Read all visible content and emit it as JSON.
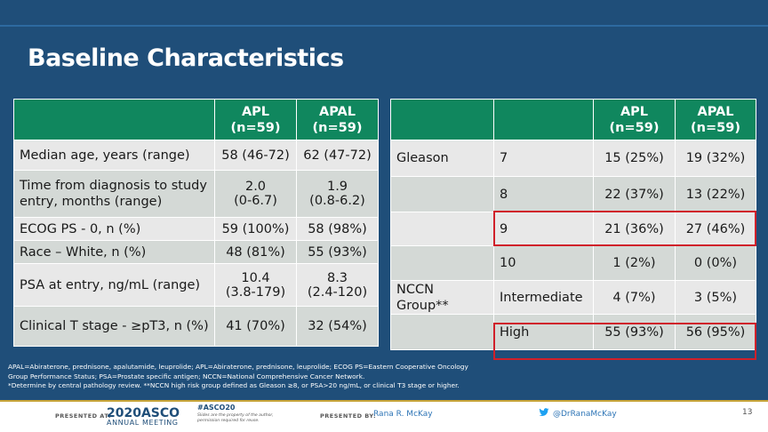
{
  "title": "Baseline Characteristics",
  "colors": {
    "header_green": "#10875e",
    "row_grey": "#e8e8e8",
    "row_alt": "#d4d9d6",
    "highlight_red": "#d0202a",
    "background": "#1f4e79"
  },
  "left_table": {
    "headers": [
      "",
      "APL\n(n=59)",
      "APAL\n(n=59)"
    ],
    "rows": [
      {
        "label": "Median age, years (range)",
        "apl": "58 (46-72)",
        "apal": "62 (47-72)"
      },
      {
        "label": "Time from diagnosis to study entry, months (range)",
        "apl": "2.0\n(0-6.7)",
        "apal": "1.9\n(0.8-6.2)"
      },
      {
        "label": "ECOG PS - 0, n (%)",
        "apl": "59 (100%)",
        "apal": "58 (98%)"
      },
      {
        "label": "Race – White, n (%)",
        "apl": "48 (81%)",
        "apal": "55 (93%)"
      },
      {
        "label": "PSA at entry, ng/mL (range)",
        "apl": "10.4\n(3.8-179)",
        "apal": "8.3\n(2.4-120)"
      },
      {
        "label": "Clinical T stage - ≥pT3, n (%)",
        "apl": "41 (70%)",
        "apal": "32 (54%)"
      }
    ]
  },
  "right_table": {
    "headers": [
      "",
      "",
      "APL\n(n=59)",
      "APAL\n(n=59)"
    ],
    "rows": [
      {
        "group": "Gleason",
        "sub": "7",
        "apl": "15 (25%)",
        "apal": "19 (32%)"
      },
      {
        "group": "",
        "sub": "8",
        "apl": "22 (37%)",
        "apal": "13 (22%)"
      },
      {
        "group": "",
        "sub": "9",
        "apl": "21 (36%)",
        "apal": "27 (46%)"
      },
      {
        "group": "",
        "sub": "10",
        "apl": "1 (2%)",
        "apal": "0 (0%)"
      },
      {
        "group": "NCCN Group**",
        "sub": "Intermediate",
        "apl": "4 (7%)",
        "apal": "3 (5%)"
      },
      {
        "group": "",
        "sub": "High",
        "apl": "55 (93%)",
        "apal": "56 (95%)"
      }
    ]
  },
  "footnotes": {
    "line1": "APAL=Abiraterone, prednisone, apalutamide, leuprolide; APL=Abiraterone, prednisone, leuprolide; ECOG PS=Eastern Cooperative Oncology",
    "line2": "Group Performance Status; PSA=Prostate specific antigen; NCCN=National Comprehensive Cancer Network.",
    "line3": "*Determine by central pathology review. **NCCN high risk group defined as Gleason ≥8, or PSA>20 ng/mL, or clinical T3 stage or higher."
  },
  "footer": {
    "presented_at": "PRESENTED AT:",
    "logo_year": "2020",
    "logo_name": "ASCO",
    "logo_sub": "ANNUAL MEETING",
    "hashtag": "#ASCO20",
    "disclaimer": "Slides are the property of the author, permission required for reuse.",
    "presented_by": "PRESENTED BY:",
    "presenter": "Rana R. McKay",
    "twitter": "@DrRanaMcKay",
    "page": "13"
  }
}
